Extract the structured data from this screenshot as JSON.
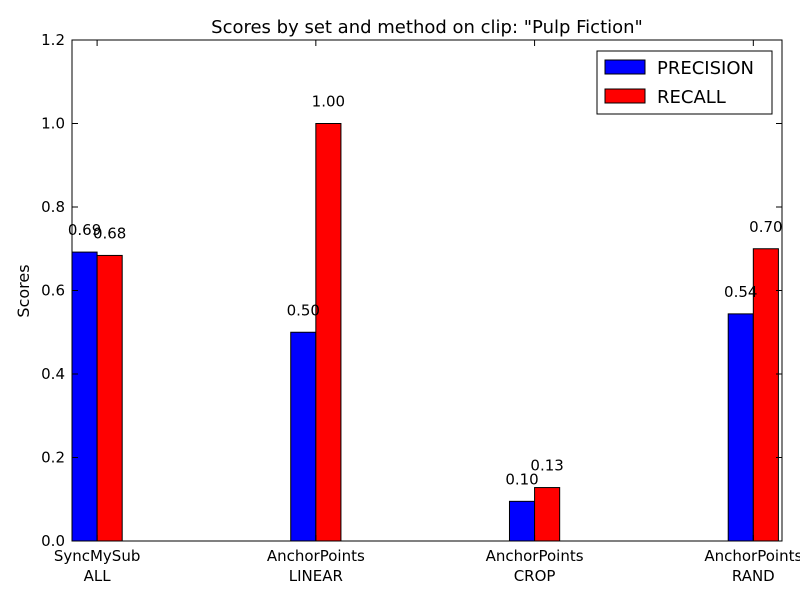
{
  "chart_data": {
    "type": "bar",
    "title": "Scores by set and method on clip: \"Pulp Fiction\"",
    "xlabel": "",
    "ylabel": "Scores",
    "ylim": [
      0,
      1.2
    ],
    "yticks": [
      "0.0",
      "0.2",
      "0.4",
      "0.6",
      "0.8",
      "1.0",
      "1.2"
    ],
    "grid": false,
    "legend_position": "top-right",
    "categories": [
      [
        "SyncMySub",
        "ALL"
      ],
      [
        "AnchorPoints",
        "LINEAR"
      ],
      [
        "AnchorPoints",
        "CROP"
      ],
      [
        "AnchorPoints",
        "RAND"
      ]
    ],
    "series": [
      {
        "name": "PRECISION",
        "color": "#0000ff",
        "values": [
          0.692,
          0.5,
          0.095,
          0.544
        ],
        "labels": [
          "0.69",
          "0.50",
          "0.10",
          "0.54"
        ]
      },
      {
        "name": "RECALL",
        "color": "#ff0000",
        "values": [
          0.684,
          1.0,
          0.128,
          0.7
        ],
        "labels": [
          "0.68",
          "1.00",
          "0.13",
          "0.70"
        ]
      }
    ]
  }
}
